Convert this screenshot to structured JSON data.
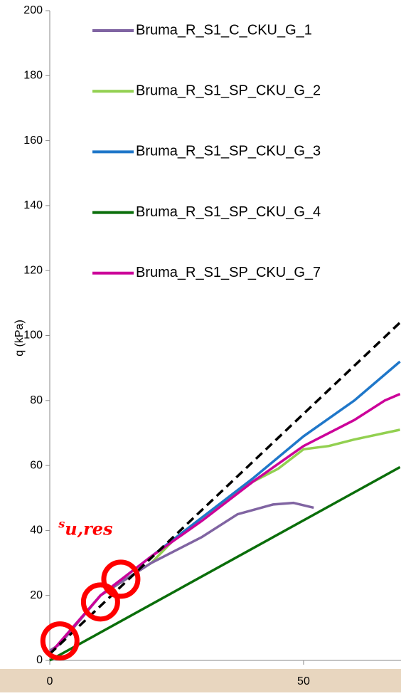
{
  "chart_data": {
    "type": "line",
    "y_label": "q (kPa)",
    "xlim": [
      0,
      69
    ],
    "ylim": [
      0,
      200
    ],
    "xticks": [
      0,
      50
    ],
    "yticks": [
      0,
      20,
      40,
      60,
      80,
      100,
      120,
      140,
      160,
      180,
      200
    ],
    "series": [
      {
        "name": "Bruma_R_S1_C_CKU_G_1",
        "color": "#8064a2",
        "x": [
          0,
          2,
          10,
          20,
          30,
          37,
          44,
          48,
          52
        ],
        "values": [
          3,
          5,
          20,
          30,
          38,
          45,
          48,
          48.5,
          47
        ]
      },
      {
        "name": "Bruma_R_S1_SP_CKU_G_2",
        "color": "#92d050",
        "x": [
          0,
          10,
          20,
          25,
          30,
          40,
          45,
          50,
          55,
          60,
          69
        ],
        "values": [
          2,
          20,
          30,
          38,
          44,
          55,
          59,
          65,
          66,
          68,
          71
        ]
      },
      {
        "name": "Bruma_R_S1_SP_CKU_G_3",
        "color": "#1f77c9",
        "x": [
          0,
          10,
          20,
          30,
          40,
          50,
          60,
          69
        ],
        "values": [
          2,
          20,
          32,
          44,
          56,
          69,
          80,
          92
        ]
      },
      {
        "name": "Bruma_R_S1_SP_CKU_G_4",
        "color": "#0a6e0a",
        "x": [
          0,
          69
        ],
        "values": [
          0,
          59.5
        ]
      },
      {
        "name": "Bruma_R_S1_SP_CKU_G_7",
        "color": "#cc0099",
        "x": [
          0,
          10,
          20,
          30,
          40,
          50,
          60,
          66,
          69
        ],
        "values": [
          2,
          20,
          32,
          43,
          55,
          66,
          74,
          80,
          82
        ]
      }
    ],
    "reference_line": {
      "color": "#000000",
      "x": [
        0,
        69
      ],
      "values": [
        2,
        104
      ]
    },
    "circles": {
      "color": "#ff0000",
      "x": [
        2,
        10,
        14
      ],
      "values": [
        6,
        18,
        25
      ]
    },
    "annotation": {
      "text": "s",
      "subscript": "u,res",
      "color": "#ff0000",
      "x": 2,
      "y": 42
    }
  }
}
